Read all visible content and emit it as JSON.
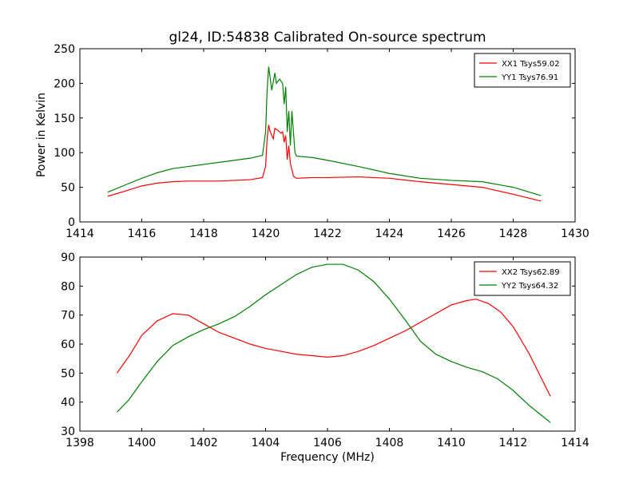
{
  "chart_data": [
    {
      "type": "line",
      "title": "gl24, ID:54838 Calibrated On-source spectrum",
      "xlabel": "",
      "ylabel": "Power in Kelvin",
      "xlim": [
        1414,
        1430
      ],
      "ylim": [
        0,
        250
      ],
      "xticks": [
        1414,
        1416,
        1418,
        1420,
        1422,
        1424,
        1426,
        1428,
        1430
      ],
      "yticks": [
        0,
        50,
        100,
        150,
        200,
        250
      ],
      "grid": false,
      "legend": "top-right",
      "series": [
        {
          "name": "XX1 Tsys59.02",
          "color": "#ff0000",
          "x": [
            1414.9,
            1415.5,
            1416,
            1416.5,
            1417,
            1417.5,
            1418,
            1418.5,
            1419,
            1419.5,
            1419.9,
            1420.0,
            1420.05,
            1420.1,
            1420.15,
            1420.25,
            1420.3,
            1420.4,
            1420.5,
            1420.55,
            1420.6,
            1420.65,
            1420.7,
            1420.75,
            1420.8,
            1420.9,
            1421.0,
            1421.5,
            1422,
            1423,
            1424,
            1425,
            1426,
            1427,
            1428,
            1428.9
          ],
          "y": [
            37,
            45,
            52,
            56,
            58,
            59,
            59,
            59,
            60,
            61,
            64,
            80,
            120,
            140,
            130,
            120,
            135,
            132,
            128,
            130,
            115,
            125,
            90,
            110,
            85,
            66,
            63,
            64,
            64,
            65,
            63,
            58,
            54,
            50,
            40,
            30
          ]
        },
        {
          "name": "YY1 Tsys76.91",
          "color": "#008000",
          "x": [
            1414.9,
            1415.5,
            1416,
            1416.5,
            1417,
            1417.5,
            1418,
            1418.5,
            1419,
            1419.5,
            1419.9,
            1420.0,
            1420.05,
            1420.1,
            1420.2,
            1420.3,
            1420.35,
            1420.45,
            1420.55,
            1420.6,
            1420.65,
            1420.7,
            1420.75,
            1420.8,
            1420.85,
            1420.95,
            1421.0,
            1421.5,
            1422,
            1423,
            1424,
            1425,
            1426,
            1427,
            1428,
            1428.9
          ],
          "y": [
            43,
            54,
            63,
            71,
            77,
            80,
            83,
            86,
            89,
            92,
            96,
            130,
            190,
            224,
            190,
            215,
            200,
            206,
            200,
            170,
            195,
            130,
            160,
            110,
            160,
            100,
            95,
            93,
            89,
            80,
            70,
            63,
            60,
            58,
            50,
            38
          ]
        }
      ]
    },
    {
      "type": "line",
      "title": "",
      "xlabel": "Frequency (MHz)",
      "ylabel": "",
      "xlim": [
        1398,
        1414
      ],
      "ylim": [
        30,
        90
      ],
      "xticks": [
        1398,
        1400,
        1402,
        1404,
        1406,
        1408,
        1410,
        1412,
        1414
      ],
      "yticks": [
        30,
        40,
        50,
        60,
        70,
        80,
        90
      ],
      "grid": false,
      "legend": "top-right",
      "series": [
        {
          "name": "XX2 Tsys62.89",
          "color": "#ff0000",
          "x": [
            1399.2,
            1399.6,
            1400,
            1400.5,
            1401,
            1401.5,
            1402,
            1402.5,
            1403,
            1403.5,
            1404,
            1404.5,
            1405,
            1405.5,
            1406,
            1406.5,
            1407,
            1407.5,
            1408,
            1408.5,
            1409,
            1409.5,
            1410,
            1410.5,
            1410.8,
            1411.2,
            1411.6,
            1412,
            1412.5,
            1413.2
          ],
          "y": [
            50,
            56,
            63,
            68,
            70.5,
            70,
            67,
            64,
            62,
            60,
            58.5,
            57.5,
            56.5,
            56,
            55.5,
            56,
            57.5,
            59.5,
            62,
            64.5,
            67.5,
            70.5,
            73.5,
            75,
            75.5,
            74,
            71,
            66,
            57,
            42
          ]
        },
        {
          "name": "YY2 Tsys64.32",
          "color": "#008000",
          "x": [
            1399.2,
            1399.6,
            1400,
            1400.5,
            1401,
            1401.5,
            1402,
            1402.5,
            1403,
            1403.5,
            1404,
            1404.5,
            1405,
            1405.5,
            1406,
            1406.5,
            1407,
            1407.5,
            1408,
            1408.5,
            1409,
            1409.5,
            1410,
            1410.5,
            1411,
            1411.5,
            1412,
            1412.5,
            1413.2
          ],
          "y": [
            36.5,
            41,
            47,
            54,
            59.5,
            62.5,
            65,
            67,
            69.5,
            73,
            77,
            80.5,
            84,
            86.5,
            87.5,
            87.5,
            85.5,
            81.5,
            75.5,
            68.5,
            61,
            56.5,
            54,
            52,
            50.5,
            48,
            44,
            39,
            33
          ]
        }
      ]
    }
  ]
}
